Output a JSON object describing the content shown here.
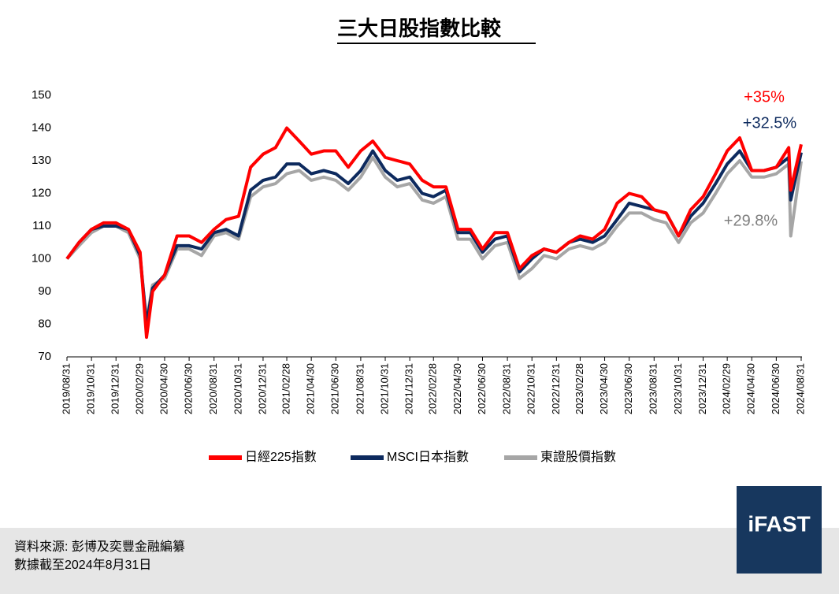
{
  "chart_data": {
    "type": "line",
    "title": "三大日股指數比較",
    "x": [
      "2019/08/31",
      "2019/09/30",
      "2019/10/31",
      "2019/11/30",
      "2019/12/31",
      "2020/01/31",
      "2020/02/29",
      "2020/03/16",
      "2020/03/31",
      "2020/04/30",
      "2020/05/31",
      "2020/06/30",
      "2020/07/31",
      "2020/08/31",
      "2020/09/30",
      "2020/10/31",
      "2020/11/30",
      "2020/12/31",
      "2021/01/31",
      "2021/02/28",
      "2021/03/31",
      "2021/04/30",
      "2021/05/31",
      "2021/06/30",
      "2021/07/31",
      "2021/08/31",
      "2021/09/30",
      "2021/10/31",
      "2021/11/30",
      "2021/12/31",
      "2022/01/31",
      "2022/02/28",
      "2022/03/31",
      "2022/04/30",
      "2022/05/31",
      "2022/06/30",
      "2022/07/31",
      "2022/08/31",
      "2022/09/30",
      "2022/10/31",
      "2022/11/30",
      "2022/12/31",
      "2023/01/31",
      "2023/02/28",
      "2023/03/31",
      "2023/04/30",
      "2023/05/31",
      "2023/06/30",
      "2023/07/31",
      "2023/08/31",
      "2023/09/30",
      "2023/10/31",
      "2023/11/30",
      "2023/12/31",
      "2024/01/31",
      "2024/02/29",
      "2024/03/31",
      "2024/04/30",
      "2024/05/31",
      "2024/06/30",
      "2024/07/31",
      "2024/08/05",
      "2024/08/31"
    ],
    "series": [
      {
        "name": "日經225指數",
        "color": "#ff0000",
        "values": [
          100,
          105,
          109,
          111,
          111,
          109,
          102,
          76,
          90,
          95,
          107,
          107,
          105,
          109,
          112,
          113,
          128,
          132,
          134,
          140,
          136,
          132,
          133,
          133,
          128,
          133,
          136,
          131,
          130,
          129,
          124,
          122,
          122,
          109,
          109,
          103,
          108,
          108,
          97,
          101,
          103,
          102,
          105,
          107,
          106,
          109,
          117,
          120,
          119,
          115,
          114,
          107,
          115,
          119,
          126,
          133,
          137,
          127,
          127,
          128,
          134,
          121,
          135
        ]
      },
      {
        "name": "MSCI日本指數",
        "color": "#0d2a5e",
        "values": [
          100,
          105,
          109,
          110,
          110,
          109,
          101,
          80,
          91,
          95,
          104,
          104,
          103,
          108,
          109,
          107,
          121,
          124,
          125,
          129,
          129,
          126,
          127,
          126,
          123,
          127,
          133,
          127,
          124,
          125,
          120,
          119,
          121,
          108,
          108,
          102,
          106,
          107,
          96,
          100,
          103,
          102,
          105,
          106,
          105,
          107,
          112,
          117,
          116,
          115,
          114,
          107,
          113,
          117,
          123,
          129,
          133,
          127,
          127,
          128,
          131,
          118,
          132.5
        ]
      },
      {
        "name": "東證股價指數",
        "color": "#a6a6a6",
        "values": [
          100,
          104,
          108,
          110,
          110,
          108,
          100,
          81,
          92,
          94,
          103,
          103,
          101,
          107,
          108,
          106,
          119,
          122,
          123,
          126,
          127,
          124,
          125,
          124,
          121,
          125,
          131,
          125,
          122,
          123,
          118,
          117,
          119,
          106,
          106,
          100,
          104,
          105,
          94,
          97,
          101,
          100,
          103,
          104,
          103,
          105,
          110,
          114,
          114,
          112,
          111,
          105,
          111,
          114,
          120,
          126,
          130,
          125,
          125,
          126,
          129,
          107,
          129.8
        ]
      }
    ],
    "annotations": [
      {
        "text": "+35%",
        "color": "#ff0000"
      },
      {
        "text": "+32.5%",
        "color": "#0d2a5e"
      },
      {
        "text": "+29.8%",
        "color": "#7f7f7f"
      }
    ],
    "xlim": [
      "2019/08/31",
      "2024/08/31"
    ],
    "xticks": [
      "2019/08/31",
      "2019/10/31",
      "2019/12/31",
      "2020/02/29",
      "2020/04/30",
      "2020/06/30",
      "2020/08/31",
      "2020/10/31",
      "2020/12/31",
      "2021/02/28",
      "2021/04/30",
      "2021/06/30",
      "2021/08/31",
      "2021/10/31",
      "2021/12/31",
      "2022/02/28",
      "2022/04/30",
      "2022/06/30",
      "2022/08/31",
      "2022/10/31",
      "2022/12/31",
      "2023/02/28",
      "2023/04/30",
      "2023/06/30",
      "2023/08/31",
      "2023/10/31",
      "2023/12/31",
      "2024/02/29",
      "2024/04/30",
      "2024/06/30",
      "2024/08/31"
    ],
    "ylim": [
      70,
      150
    ],
    "yticks": [
      70,
      80,
      90,
      100,
      110,
      120,
      130,
      140,
      150
    ],
    "grid": false
  },
  "footer": {
    "source": "資料來源: 彭博及奕豐金融編纂",
    "date": "數據截至2024年8月31日",
    "logo": "iFAST"
  }
}
